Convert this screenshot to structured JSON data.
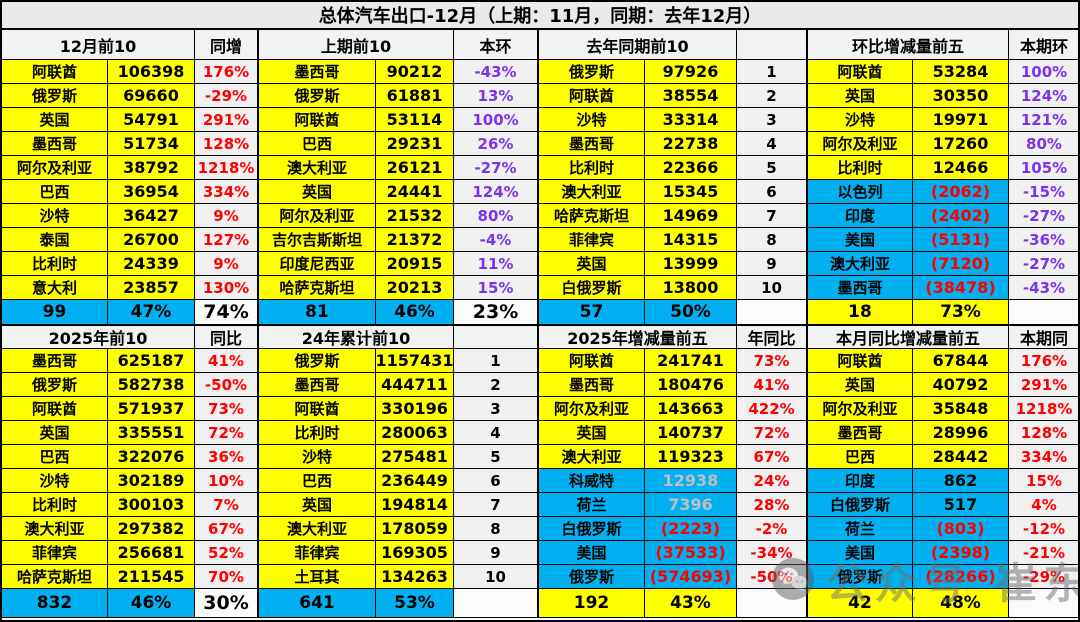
{
  "title": "总体汽车出口-12月（上期：11月，同期：去年12月）",
  "colors": {
    "yellow": "#ffff00",
    "cyan": "#00b0f0",
    "red": "#ff0000",
    "purple": "#7d33ea",
    "gray_value": "#bfbfbf"
  },
  "watermark": {
    "icon": "wechat-icon",
    "text": "公众号 崔东树"
  },
  "top_table": {
    "panels": [
      {
        "title": "12月前10",
        "sub": "同增",
        "pct_color": "red",
        "footer_bg": "cyan",
        "footer": [
          "99",
          "47%",
          "74%"
        ],
        "rows": [
          {
            "c": "阿联酋",
            "v": "106398",
            "p": "176%"
          },
          {
            "c": "俄罗斯",
            "v": "69660",
            "p": "-29%"
          },
          {
            "c": "英国",
            "v": "54791",
            "p": "291%"
          },
          {
            "c": "墨西哥",
            "v": "51734",
            "p": "128%"
          },
          {
            "c": "阿尔及利亚",
            "v": "38792",
            "p": "1218%"
          },
          {
            "c": "巴西",
            "v": "36954",
            "p": "334%"
          },
          {
            "c": "沙特",
            "v": "36427",
            "p": "9%"
          },
          {
            "c": "泰国",
            "v": "26700",
            "p": "127%"
          },
          {
            "c": "比利时",
            "v": "24339",
            "p": "9%"
          },
          {
            "c": "意大利",
            "v": "23857",
            "p": "130%"
          }
        ]
      },
      {
        "title": "上期前10",
        "sub": "本环",
        "pct_color": "purple",
        "footer_bg": "cyan",
        "footer": [
          "81",
          "46%",
          "23%"
        ],
        "rows": [
          {
            "c": "墨西哥",
            "v": "90212",
            "p": "-43%"
          },
          {
            "c": "俄罗斯",
            "v": "61881",
            "p": "13%"
          },
          {
            "c": "阿联酋",
            "v": "53114",
            "p": "100%"
          },
          {
            "c": "巴西",
            "v": "29231",
            "p": "26%"
          },
          {
            "c": "澳大利亚",
            "v": "26121",
            "p": "-27%"
          },
          {
            "c": "英国",
            "v": "24441",
            "p": "124%"
          },
          {
            "c": "阿尔及利亚",
            "v": "21532",
            "p": "80%"
          },
          {
            "c": "吉尔吉斯斯坦",
            "v": "21372",
            "p": "-4%"
          },
          {
            "c": "印度尼西亚",
            "v": "20915",
            "p": "11%"
          },
          {
            "c": "哈萨克斯坦",
            "v": "20213",
            "p": "15%"
          }
        ]
      },
      {
        "title": "去年同期前10",
        "sub": "",
        "pct_color": "black",
        "footer_bg": "cyan",
        "footer": [
          "57",
          "50%",
          ""
        ],
        "rows": [
          {
            "c": "俄罗斯",
            "v": "97926",
            "p": "1"
          },
          {
            "c": "阿联酋",
            "v": "38554",
            "p": "2"
          },
          {
            "c": "沙特",
            "v": "33314",
            "p": "3"
          },
          {
            "c": "墨西哥",
            "v": "22738",
            "p": "4"
          },
          {
            "c": "比利时",
            "v": "22366",
            "p": "5"
          },
          {
            "c": "澳大利亚",
            "v": "15345",
            "p": "6"
          },
          {
            "c": "哈萨克斯坦",
            "v": "14969",
            "p": "7"
          },
          {
            "c": "菲律宾",
            "v": "14315",
            "p": "8"
          },
          {
            "c": "英国",
            "v": "13999",
            "p": "9"
          },
          {
            "c": "白俄罗斯",
            "v": "13800",
            "p": "10"
          }
        ]
      },
      {
        "title": "环比增减量前五",
        "sub": "本期环",
        "pct_color": "purple",
        "footer_bg": "yellow",
        "footer": [
          "18",
          "73%",
          ""
        ],
        "rows": [
          {
            "c": "阿联酋",
            "v": "53284",
            "p": "100%"
          },
          {
            "c": "英国",
            "v": "30350",
            "p": "124%"
          },
          {
            "c": "沙特",
            "v": "19971",
            "p": "121%"
          },
          {
            "c": "阿尔及利亚",
            "v": "17260",
            "p": "80%"
          },
          {
            "c": "比利时",
            "v": "12466",
            "p": "105%"
          },
          {
            "c": "以色列",
            "v": "(2062)",
            "p": "-15%",
            "bg": "cyan",
            "vc": "red"
          },
          {
            "c": "印度",
            "v": "(2402)",
            "p": "-27%",
            "bg": "cyan",
            "vc": "red"
          },
          {
            "c": "美国",
            "v": "(5131)",
            "p": "-36%",
            "bg": "cyan",
            "vc": "red"
          },
          {
            "c": "澳大利亚",
            "v": "(7120)",
            "p": "-27%",
            "bg": "cyan",
            "vc": "red"
          },
          {
            "c": "墨西哥",
            "v": "(38478)",
            "p": "-43%",
            "bg": "cyan",
            "vc": "red"
          }
        ]
      }
    ]
  },
  "bottom_table": {
    "panels": [
      {
        "title": "2025年前10",
        "sub": "同比",
        "pct_color": "red",
        "footer_bg": "cyan",
        "footer": [
          "832",
          "46%",
          "30%"
        ],
        "rows": [
          {
            "c": "墨西哥",
            "v": "625187",
            "p": "41%"
          },
          {
            "c": "俄罗斯",
            "v": "582738",
            "p": "-50%"
          },
          {
            "c": "阿联酋",
            "v": "571937",
            "p": "73%"
          },
          {
            "c": "英国",
            "v": "335551",
            "p": "72%"
          },
          {
            "c": "巴西",
            "v": "322076",
            "p": "36%"
          },
          {
            "c": "沙特",
            "v": "302189",
            "p": "10%"
          },
          {
            "c": "比利时",
            "v": "300103",
            "p": "7%"
          },
          {
            "c": "澳大利亚",
            "v": "297382",
            "p": "67%"
          },
          {
            "c": "菲律宾",
            "v": "256681",
            "p": "52%"
          },
          {
            "c": "哈萨克斯坦",
            "v": "211545",
            "p": "70%"
          }
        ]
      },
      {
        "title": "24年累计前10",
        "sub": "",
        "pct_color": "black",
        "footer_bg": "cyan",
        "footer": [
          "641",
          "53%",
          ""
        ],
        "rows": [
          {
            "c": "俄罗斯",
            "v": "1157431",
            "p": "1"
          },
          {
            "c": "墨西哥",
            "v": "444711",
            "p": "2"
          },
          {
            "c": "阿联酋",
            "v": "330196",
            "p": "3"
          },
          {
            "c": "比利时",
            "v": "280063",
            "p": "4"
          },
          {
            "c": "沙特",
            "v": "275481",
            "p": "5"
          },
          {
            "c": "巴西",
            "v": "236449",
            "p": "6"
          },
          {
            "c": "英国",
            "v": "194814",
            "p": "7"
          },
          {
            "c": "澳大利亚",
            "v": "178059",
            "p": "8"
          },
          {
            "c": "菲律宾",
            "v": "169305",
            "p": "9"
          },
          {
            "c": "土耳其",
            "v": "134263",
            "p": "10"
          }
        ]
      },
      {
        "title": "2025年增减量前五",
        "sub": "年同比",
        "pct_color": "red",
        "footer_bg": "yellow",
        "footer": [
          "192",
          "43%",
          ""
        ],
        "rows": [
          {
            "c": "阿联酋",
            "v": "241741",
            "p": "73%"
          },
          {
            "c": "墨西哥",
            "v": "180476",
            "p": "41%"
          },
          {
            "c": "阿尔及利亚",
            "v": "143663",
            "p": "422%"
          },
          {
            "c": "英国",
            "v": "140737",
            "p": "72%"
          },
          {
            "c": "澳大利亚",
            "v": "119323",
            "p": "67%"
          },
          {
            "c": "科威特",
            "v": "12938",
            "p": "24%",
            "bg": "cyan",
            "vc": "gray"
          },
          {
            "c": "荷兰",
            "v": "7396",
            "p": "28%",
            "bg": "cyan",
            "vc": "gray"
          },
          {
            "c": "白俄罗斯",
            "v": "(2223)",
            "p": "-2%",
            "bg": "cyan",
            "vc": "red"
          },
          {
            "c": "美国",
            "v": "(37533)",
            "p": "-34%",
            "bg": "cyan",
            "vc": "red"
          },
          {
            "c": "俄罗斯",
            "v": "(574693)",
            "p": "-50%",
            "bg": "cyan",
            "vc": "red"
          }
        ]
      },
      {
        "title": "本月同比增减量前五",
        "sub": "本期同",
        "pct_color": "red",
        "footer_bg": "yellow",
        "footer": [
          "42",
          "48%",
          ""
        ],
        "rows": [
          {
            "c": "阿联酋",
            "v": "67844",
            "p": "176%"
          },
          {
            "c": "英国",
            "v": "40792",
            "p": "291%"
          },
          {
            "c": "阿尔及利亚",
            "v": "35848",
            "p": "1218%"
          },
          {
            "c": "墨西哥",
            "v": "28996",
            "p": "128%"
          },
          {
            "c": "巴西",
            "v": "28442",
            "p": "334%"
          },
          {
            "c": "印度",
            "v": "862",
            "p": "15%",
            "bg": "cyan"
          },
          {
            "c": "白俄罗斯",
            "v": "517",
            "p": "4%",
            "bg": "cyan"
          },
          {
            "c": "荷兰",
            "v": "(803)",
            "p": "-12%",
            "bg": "cyan",
            "vc": "red"
          },
          {
            "c": "美国",
            "v": "(2398)",
            "p": "-21%",
            "bg": "cyan",
            "vc": "red"
          },
          {
            "c": "俄罗斯",
            "v": "(28266)",
            "p": "-29%",
            "bg": "cyan",
            "vc": "red"
          }
        ]
      }
    ]
  }
}
